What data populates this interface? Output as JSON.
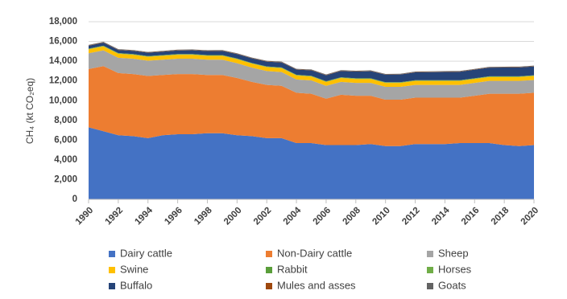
{
  "chart_data": {
    "type": "stacked-area",
    "ylabel": "CH₄ (kt CO₂eq)",
    "x": [
      1990,
      1991,
      1992,
      1993,
      1994,
      1995,
      1996,
      1997,
      1998,
      1999,
      2000,
      2001,
      2002,
      2003,
      2004,
      2005,
      2006,
      2007,
      2008,
      2009,
      2010,
      2011,
      2012,
      2013,
      2014,
      2015,
      2016,
      2017,
      2018,
      2019,
      2020
    ],
    "xlim": [
      1990,
      2020
    ],
    "xticks": [
      1990,
      1992,
      1994,
      1996,
      1998,
      2000,
      2002,
      2004,
      2006,
      2008,
      2010,
      2012,
      2014,
      2016,
      2018,
      2020
    ],
    "ylim": [
      0,
      18000
    ],
    "yticks": [
      0,
      {
        "value": 2000,
        "label": "2,000"
      },
      {
        "value": 4000,
        "label": "4,000"
      },
      {
        "value": 6000,
        "label": "6,000"
      },
      {
        "value": 8000,
        "label": "8,000"
      },
      {
        "value": 10000,
        "label": "10,000"
      },
      {
        "value": 12000,
        "label": "12,000"
      },
      {
        "value": 14000,
        "label": "14,000"
      },
      {
        "value": 16000,
        "label": "16,000"
      },
      {
        "value": 18000,
        "label": "18,000"
      }
    ],
    "grid": true,
    "legend": "bottom",
    "series": [
      {
        "name": "Dairy cattle",
        "color": "#4472c4",
        "values": [
          7300,
          6900,
          6500,
          6400,
          6200,
          6500,
          6600,
          6600,
          6700,
          6700,
          6500,
          6400,
          6200,
          6200,
          5700,
          5700,
          5500,
          5500,
          5500,
          5600,
          5400,
          5400,
          5600,
          5600,
          5600,
          5700,
          5700,
          5700,
          5500,
          5400,
          5500
        ]
      },
      {
        "name": "Non-Dairy cattle",
        "color": "#ed7d31",
        "values": [
          5900,
          6600,
          6300,
          6300,
          6300,
          6100,
          6100,
          6100,
          5900,
          5900,
          5800,
          5500,
          5400,
          5300,
          5100,
          5000,
          4700,
          5100,
          5000,
          4900,
          4700,
          4700,
          4700,
          4700,
          4700,
          4600,
          4800,
          5000,
          5200,
          5300,
          5300
        ]
      },
      {
        "name": "Sheep",
        "color": "#a5a5a5",
        "values": [
          1600,
          1600,
          1550,
          1550,
          1550,
          1550,
          1550,
          1550,
          1550,
          1550,
          1500,
          1450,
          1400,
          1400,
          1350,
          1350,
          1300,
          1300,
          1300,
          1300,
          1300,
          1300,
          1300,
          1300,
          1300,
          1300,
          1300,
          1300,
          1300,
          1300,
          1300
        ]
      },
      {
        "name": "Swine",
        "color": "#ffc000",
        "values": [
          400,
          400,
          400,
          400,
          400,
          400,
          400,
          400,
          400,
          400,
          400,
          400,
          400,
          400,
          400,
          400,
          400,
          400,
          400,
          400,
          400,
          400,
          400,
          400,
          400,
          400,
          400,
          400,
          400,
          400,
          400
        ]
      },
      {
        "name": "Rabbit",
        "color": "#5a9e3a",
        "values": [
          20,
          20,
          20,
          20,
          20,
          20,
          20,
          20,
          20,
          20,
          20,
          20,
          20,
          20,
          20,
          20,
          20,
          20,
          20,
          20,
          20,
          20,
          20,
          20,
          20,
          20,
          20,
          20,
          20,
          20,
          20
        ]
      },
      {
        "name": "Horses",
        "color": "#70ad47",
        "values": [
          50,
          50,
          50,
          50,
          50,
          50,
          50,
          50,
          50,
          50,
          50,
          50,
          50,
          50,
          50,
          50,
          50,
          50,
          50,
          50,
          50,
          50,
          50,
          50,
          50,
          50,
          50,
          50,
          50,
          50,
          50
        ]
      },
      {
        "name": "Buffalo",
        "color": "#264478",
        "values": [
          300,
          310,
          320,
          330,
          340,
          350,
          370,
          390,
          410,
          430,
          450,
          470,
          490,
          510,
          530,
          560,
          600,
          640,
          680,
          720,
          760,
          780,
          800,
          820,
          840,
          860,
          870,
          880,
          890,
          900,
          900
        ]
      },
      {
        "name": "Mules and asses",
        "color": "#9e480e",
        "values": [
          30,
          30,
          30,
          30,
          30,
          30,
          30,
          30,
          30,
          30,
          30,
          30,
          30,
          30,
          30,
          30,
          30,
          30,
          30,
          30,
          30,
          30,
          30,
          30,
          30,
          30,
          30,
          30,
          30,
          30,
          30
        ]
      },
      {
        "name": "Goats",
        "color": "#636363",
        "values": [
          50,
          50,
          50,
          50,
          50,
          50,
          50,
          50,
          50,
          50,
          50,
          50,
          50,
          50,
          50,
          50,
          50,
          50,
          50,
          50,
          50,
          50,
          50,
          50,
          50,
          50,
          50,
          50,
          50,
          50,
          50
        ]
      }
    ]
  }
}
